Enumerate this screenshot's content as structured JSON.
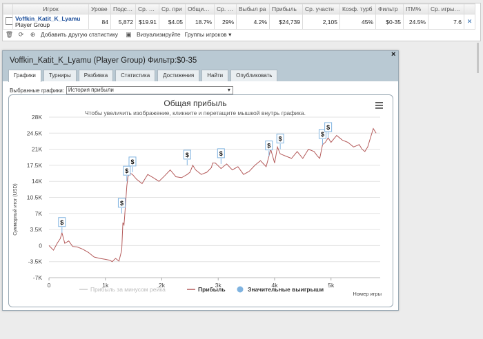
{
  "stats": {
    "columns": [
      "",
      "Игрок",
      "Урове",
      "Подсчет",
      "Ср. ста",
      "Ср. при",
      "Общий RC",
      "Ср. RC",
      "Выбыл ра",
      "Прибыль",
      "Ср. участн",
      "Коэф. турб",
      "Фильтр",
      "ITM%",
      "Ср. игры /...",
      ""
    ],
    "row": {
      "player_name": "Voffkin_Katit_K_Lyamu",
      "player_group": "Player Group",
      "level": "84",
      "count": "5,872",
      "avg_stake": "$19.91",
      "avg_profit": "$4.05",
      "total_roi": "18.7%",
      "avg_roi": "29%",
      "eliminated": "4.2%",
      "profit": "$24,739",
      "avg_entrants": "2,105",
      "turbo_coef": "45%",
      "filter": "$0-35",
      "itm": "24.5%",
      "avg_games": "7.6"
    },
    "toolbar": {
      "add_stats": "Добавить другую статистику",
      "visualize": "Визуализируйте",
      "player_groups": "Группы игроков"
    }
  },
  "dialog": {
    "title": "Voffkin_Katit_K_Lyamu (Player Group) Фильтр:$0-35",
    "close": "×",
    "tabs": [
      "Графики",
      "Турниры",
      "Разбивка",
      "Статистика",
      "Достижения",
      "Найти",
      "Опубликовать"
    ],
    "active_tab": 0,
    "select_label": "Выбранные графики:",
    "select_value": "История прибыли"
  },
  "chart_data": {
    "type": "line",
    "title": "Общая прибыль",
    "subtitle": "Чтобы увеличить изображение, кликните и перетащите мышкой внутрь графика.",
    "xlabel": "Номер игры",
    "ylabel": "Суммарный итог (USD)",
    "xlim": [
      0,
      5872
    ],
    "ylim": [
      -7000,
      28000
    ],
    "x_ticks": [
      0,
      1000,
      2000,
      3000,
      4000,
      5000
    ],
    "x_tick_labels": [
      "0",
      "1k",
      "2k",
      "3k",
      "4k",
      "5k"
    ],
    "y_ticks": [
      -7000,
      -3500,
      0,
      3500,
      7000,
      10500,
      14000,
      17500,
      21000,
      24500,
      28000
    ],
    "y_tick_labels": [
      "-7K",
      "-3.5K",
      "0",
      "3.5K",
      "7K",
      "10.5K",
      "14K",
      "17.5K",
      "21K",
      "24.5K",
      "28K"
    ],
    "grid": true,
    "legend_position": "bottom",
    "series": [
      {
        "name": "Прибыль за минусом рейка",
        "color": "#cccccc",
        "hidden": true,
        "x": [],
        "y": []
      },
      {
        "name": "Прибыль",
        "color": "#b45a5a",
        "x": [
          0,
          80,
          150,
          200,
          230,
          280,
          350,
          420,
          500,
          600,
          700,
          800,
          900,
          1000,
          1080,
          1120,
          1180,
          1240,
          1290,
          1310,
          1330,
          1340,
          1380,
          1400,
          1430,
          1480,
          1550,
          1650,
          1750,
          1850,
          1950,
          2050,
          2150,
          2250,
          2350,
          2450,
          2500,
          2550,
          2600,
          2700,
          2800,
          2880,
          2900,
          2950,
          3050,
          3150,
          3250,
          3350,
          3450,
          3550,
          3650,
          3750,
          3850,
          3900,
          3930,
          4000,
          4050,
          4100,
          4200,
          4300,
          4400,
          4500,
          4600,
          4700,
          4760,
          4800,
          4850,
          4900,
          4950,
          5000,
          5100,
          5200,
          5300,
          5400,
          5500,
          5550,
          5600,
          5650,
          5700,
          5750,
          5800
        ],
        "y": [
          0,
          -1000,
          600,
          1500,
          2800,
          500,
          1000,
          -200,
          -300,
          -800,
          -1500,
          -2500,
          -2800,
          -3000,
          -3200,
          -3500,
          -2800,
          -3400,
          -1000,
          5000,
          4500,
          6000,
          13000,
          15000,
          15800,
          15500,
          14500,
          13500,
          15500,
          14800,
          14000,
          15200,
          16500,
          15000,
          14800,
          15500,
          16000,
          17500,
          16500,
          15500,
          16000,
          17000,
          18000,
          18000,
          16800,
          17800,
          16500,
          17200,
          15500,
          16200,
          17500,
          18500,
          17200,
          19500,
          21000,
          18000,
          21500,
          20000,
          19500,
          19000,
          20500,
          19000,
          21000,
          20500,
          19500,
          19000,
          22000,
          22500,
          23500,
          22500,
          24000,
          23000,
          22500,
          21500,
          22000,
          21000,
          20500,
          21500,
          23500,
          25500,
          24500
        ]
      },
      {
        "name": "Значительные выигрыши",
        "color": "#7fb3e0",
        "type": "scatter",
        "x": [
          230,
          1290,
          1380,
          1480,
          2450,
          3050,
          3900,
          4100,
          4850,
          4950
        ],
        "y": [
          2800,
          7000,
          14000,
          16000,
          17500,
          17800,
          19500,
          21000,
          22000,
          23500
        ],
        "marker_label": "$"
      }
    ]
  },
  "colors": {
    "header_bg": "#b9c9d3",
    "player_link": "#1a4d9a",
    "profit_line": "#b45a5a",
    "big_win": "#7fb3e0"
  }
}
